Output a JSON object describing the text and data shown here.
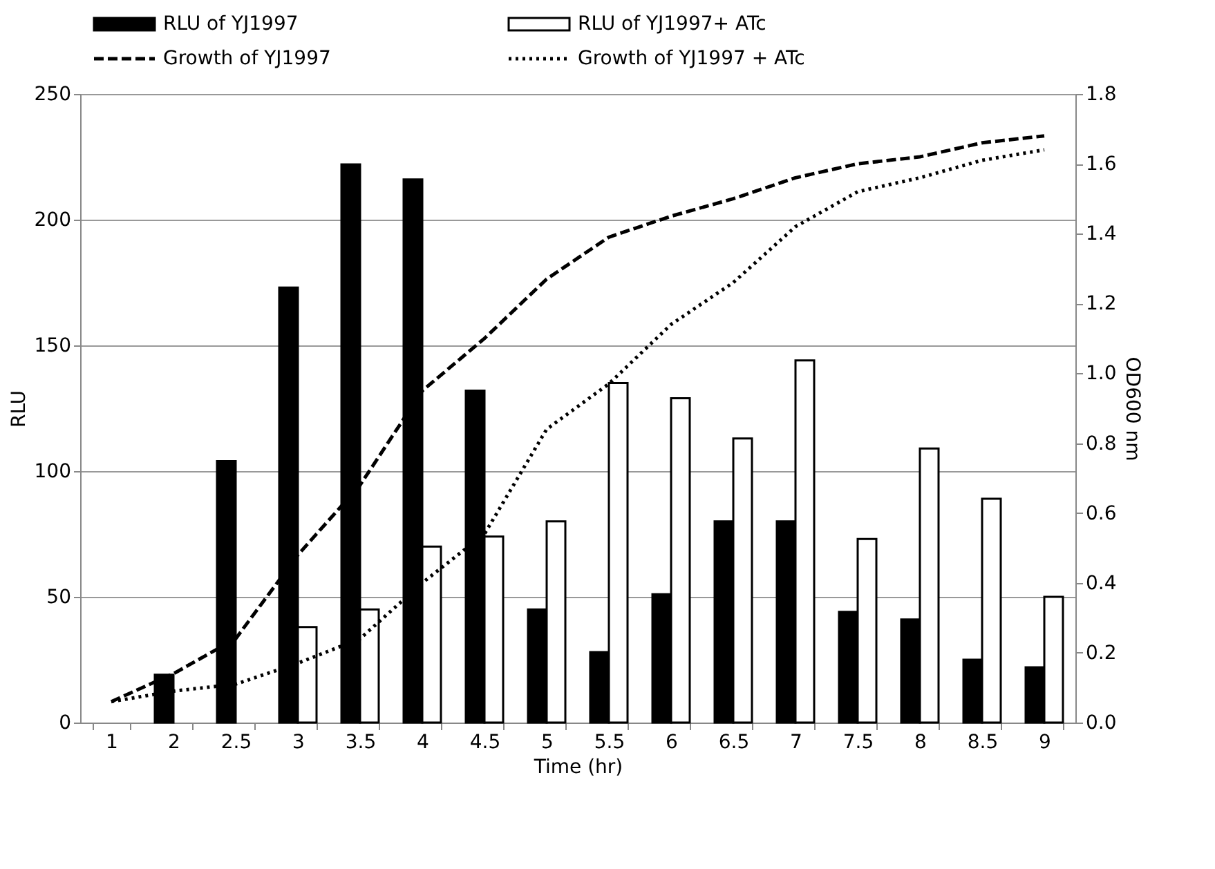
{
  "chart_data": {
    "type": "bar",
    "xlabel": "Time (hr)",
    "ylabel": "RLU",
    "y2label": "OD600 nm",
    "categories": [
      "1",
      "2",
      "2.5",
      "3",
      "3.5",
      "4",
      "4.5",
      "5",
      "5.5",
      "6",
      "6.5",
      "7",
      "7.5",
      "8",
      "8.5",
      "9"
    ],
    "series": [
      {
        "name": "RLU of YJ1997",
        "color": "#000000",
        "values": [
          null,
          19,
          104,
          173,
          222,
          216,
          132,
          45,
          28,
          51,
          80,
          80,
          44,
          41,
          25,
          22
        ]
      },
      {
        "name": "RLU of YJ1997+ ATc",
        "color": "#ffffff",
        "values": [
          null,
          null,
          null,
          38,
          45,
          70,
          74,
          80,
          135,
          129,
          113,
          144,
          73,
          109,
          89,
          50
        ]
      },
      {
        "name": "Growth of YJ1997",
        "type": "line",
        "axis": "y2",
        "line_style": "dashed",
        "color": "#000000",
        "values": [
          0.06,
          0.14,
          0.24,
          0.48,
          0.68,
          0.95,
          1.1,
          1.27,
          1.39,
          1.45,
          1.5,
          1.56,
          1.6,
          1.62,
          1.66,
          1.68
        ]
      },
      {
        "name": "Growth of YJ1997 + ATc",
        "type": "line",
        "axis": "y2",
        "line_style": "dotted",
        "color": "#000000",
        "values": [
          0.06,
          0.09,
          0.11,
          0.17,
          0.24,
          0.4,
          0.54,
          0.84,
          0.97,
          1.14,
          1.26,
          1.42,
          1.52,
          1.56,
          1.61,
          1.64
        ]
      }
    ],
    "ylim": [
      0,
      250
    ],
    "yticks": [
      0,
      50,
      100,
      150,
      200,
      250
    ],
    "y2lim": [
      0,
      1.8
    ],
    "y2ticks": [
      {
        "value": 0,
        "label": "0.0"
      },
      {
        "value": 0.2,
        "label": "0.2"
      },
      {
        "value": 0.4,
        "label": "0.4"
      },
      {
        "value": 0.6,
        "label": "0.6"
      },
      {
        "value": 0.8,
        "label": "0.8"
      },
      {
        "value": 1.0,
        "label": "1.0"
      },
      {
        "value": 1.2,
        "label": "1.2"
      },
      {
        "value": 1.4,
        "label": "1.4"
      },
      {
        "value": 1.6,
        "label": "1.6"
      },
      {
        "value": 1.8,
        "label": "1.8"
      }
    ],
    "grid": "y",
    "legend": "top"
  }
}
